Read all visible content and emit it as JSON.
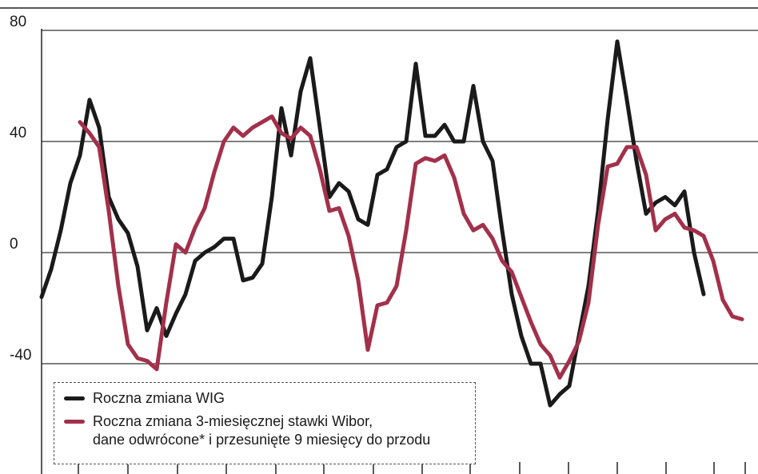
{
  "chart_data": {
    "type": "line",
    "ylim": [
      -80,
      80
    ],
    "yticks": [
      80,
      40,
      0,
      -40
    ],
    "grid": true,
    "series": [
      {
        "name": "Roczna zmiana WIG",
        "color": "#1a1a1a",
        "values": [
          -16,
          -6,
          8,
          25,
          35,
          55,
          45,
          20,
          12,
          7,
          -5,
          -28,
          -20,
          -30,
          -22,
          -15,
          -3,
          0,
          2,
          5,
          5,
          -10,
          -9,
          -4,
          20,
          52,
          35,
          58,
          70,
          45,
          20,
          25,
          22,
          12,
          10,
          28,
          30,
          38,
          40,
          68,
          42,
          42,
          46,
          40,
          40,
          60,
          40,
          33,
          8,
          -15,
          -30,
          -40,
          -40,
          -55,
          -51,
          -48,
          -30,
          -12,
          15,
          48,
          76,
          55,
          33,
          14,
          18,
          20,
          17,
          22,
          0,
          -15,
          null,
          null,
          null,
          null
        ]
      },
      {
        "name": "Roczna zmiana 3-miesięcznej stawki Wibor,\ndane odwrócone* i przesunięte 9 miesięcy do przodu",
        "color": "#a3304a",
        "values": [
          null,
          null,
          null,
          null,
          47,
          43,
          38,
          15,
          -12,
          -33,
          -38,
          -39,
          -42,
          -18,
          3,
          0,
          9,
          16,
          29,
          40,
          45,
          42,
          45,
          47,
          49,
          43,
          41,
          45,
          42,
          30,
          15,
          16,
          6,
          -10,
          -35,
          -19,
          -18,
          -12,
          8,
          32,
          34,
          33,
          35,
          27,
          14,
          8,
          10,
          5,
          -3,
          -7,
          -16,
          -25,
          -33,
          -37,
          -45,
          -39,
          -32,
          -18,
          10,
          31,
          32,
          38,
          38,
          28,
          8,
          12,
          14,
          9,
          8,
          6,
          -3,
          -17,
          -23,
          -24
        ]
      }
    ]
  }
}
